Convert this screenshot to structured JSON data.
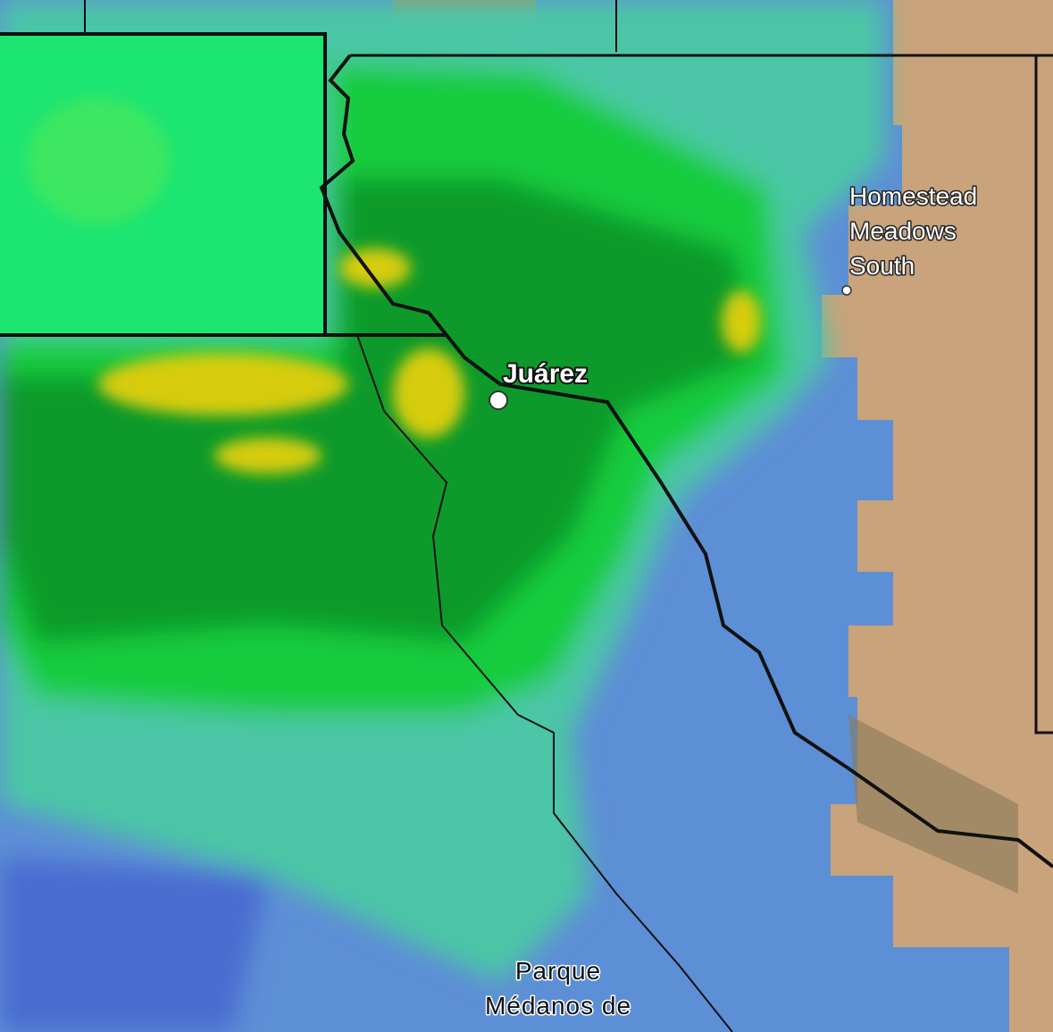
{
  "places": [
    {
      "lines": [
        "Juárez"
      ]
    },
    {
      "lines": [
        "Homestead",
        "Meadows",
        "South"
      ]
    },
    {
      "lines": [
        "Parque",
        "Médanos de"
      ]
    }
  ]
}
